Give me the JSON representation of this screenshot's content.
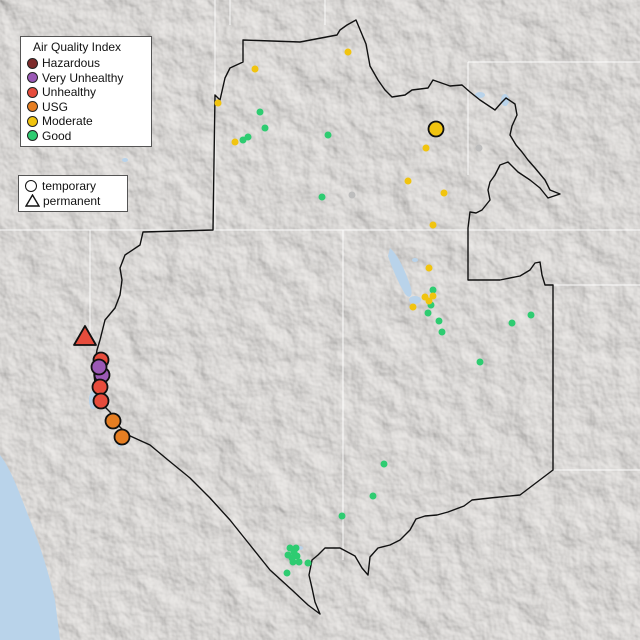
{
  "legend": {
    "title": "Air Quality Index",
    "categories": [
      {
        "label": "Hazardous",
        "color": "#7e2b2b"
      },
      {
        "label": "Very Unhealthy",
        "color": "#9b59b6"
      },
      {
        "label": "Unhealthy",
        "color": "#e74c3c"
      },
      {
        "label": "USG",
        "color": "#e67e22"
      },
      {
        "label": "Moderate",
        "color": "#f1c40f"
      },
      {
        "label": "Good",
        "color": "#2ecc71"
      }
    ],
    "no_data_color": "#bdbdbd"
  },
  "monitor_types": {
    "temporary": "temporary",
    "permanent": "permanent"
  },
  "map": {
    "region_outline": "region boundary",
    "background_color": "#e9e6e3",
    "water_color": "#b9d3ea"
  }
}
